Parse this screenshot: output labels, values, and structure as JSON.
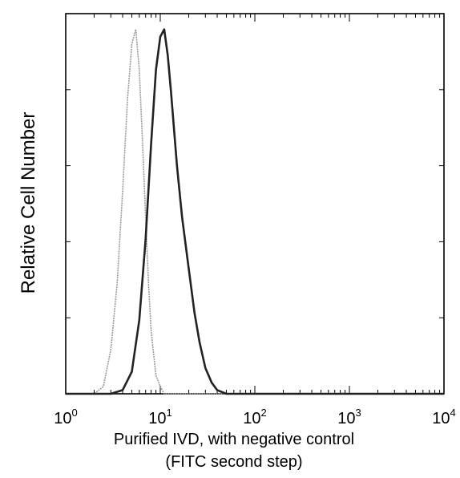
{
  "chart_data": {
    "type": "line",
    "xscale": "log",
    "xlim": [
      1,
      10000
    ],
    "ylim": [
      0,
      1
    ],
    "xlabel_line1": "Purified IVD, with negative control",
    "xlabel_line2": "(FITC second step)",
    "ylabel": "Relative Cell Number",
    "x_ticks": [
      {
        "base": "10",
        "exp": "0",
        "value": 1
      },
      {
        "base": "10",
        "exp": "1",
        "value": 10
      },
      {
        "base": "10",
        "exp": "2",
        "value": 100
      },
      {
        "base": "10",
        "exp": "3",
        "value": 1000
      },
      {
        "base": "10",
        "exp": "4",
        "value": 10000
      }
    ],
    "series": [
      {
        "style": "light",
        "color": "#9a9a9a",
        "x": [
          1,
          2,
          2.5,
          3,
          3.5,
          4,
          4.5,
          5,
          5.5,
          6,
          6.5,
          7,
          7.5,
          8,
          9,
          10,
          11,
          13,
          10000
        ],
        "y": [
          0.0,
          0.0,
          0.02,
          0.12,
          0.3,
          0.55,
          0.8,
          0.95,
          0.99,
          0.88,
          0.68,
          0.48,
          0.3,
          0.17,
          0.05,
          0.02,
          0.0,
          0.0,
          0.0
        ]
      },
      {
        "style": "dark",
        "color": "#222222",
        "x": [
          1,
          3,
          4,
          5,
          6,
          7,
          8,
          9,
          10,
          11,
          12,
          13,
          15,
          17,
          20,
          23,
          26,
          30,
          35,
          40,
          50,
          10000
        ],
        "y": [
          0.0,
          0.0,
          0.01,
          0.06,
          0.2,
          0.42,
          0.68,
          0.88,
          0.97,
          0.99,
          0.92,
          0.82,
          0.62,
          0.48,
          0.34,
          0.22,
          0.14,
          0.07,
          0.03,
          0.01,
          0.0,
          0.0
        ]
      }
    ]
  }
}
